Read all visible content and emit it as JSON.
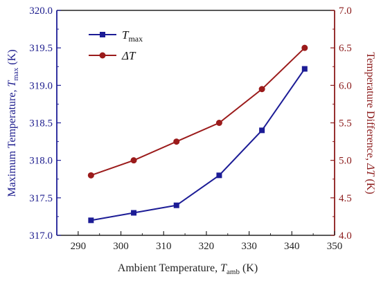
{
  "chart_data": {
    "type": "line",
    "x": [
      293,
      303,
      313,
      323,
      333,
      343
    ],
    "xlim": [
      285,
      350
    ],
    "xticks": [
      290,
      300,
      310,
      320,
      330,
      340,
      350
    ],
    "xlabel": {
      "text": "Ambient Temperature, ",
      "var": "T",
      "sub": "amb",
      "unit": " (K)"
    },
    "ylim_left": [
      317.0,
      320.0
    ],
    "yticks_left": [
      317.0,
      317.5,
      318.0,
      318.5,
      319.0,
      319.5,
      320.0
    ],
    "ylabel_left": {
      "text": "Maximum Temperature, ",
      "var": "T",
      "sub": "max",
      "unit": " (K)"
    },
    "ylim_right": [
      4.0,
      7.0
    ],
    "yticks_right": [
      4.0,
      4.5,
      5.0,
      5.5,
      6.0,
      6.5,
      7.0
    ],
    "ylabel_right": {
      "text": "Temperature Difference, ",
      "var": "ΔT",
      "unit": " (K)"
    },
    "series": [
      {
        "name": "Tmax",
        "legend_var": "T",
        "legend_sub": "max",
        "axis": "left",
        "marker": "square",
        "color": "#1c1c96",
        "values": [
          317.2,
          317.3,
          317.4,
          317.8,
          318.4,
          319.22
        ]
      },
      {
        "name": "ΔT",
        "legend_var": "ΔT",
        "legend_sub": "",
        "axis": "right",
        "marker": "circle",
        "color": "#9b1b1b",
        "values": [
          4.8,
          5.0,
          5.25,
          5.5,
          5.95,
          6.5
        ]
      }
    ],
    "legend_position": "top-left",
    "grid": false,
    "left_axis_color": "#1c1c96",
    "right_axis_color": "#8b1a1a"
  }
}
